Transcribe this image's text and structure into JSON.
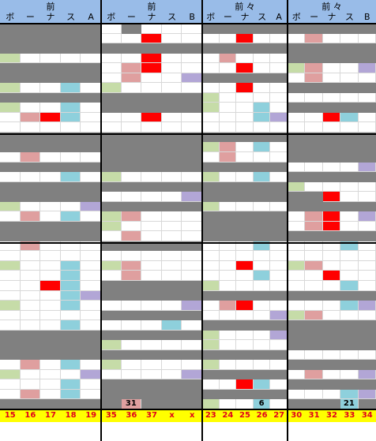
{
  "colors": {
    "gray": "#808080",
    "white": "#ffffff",
    "green": "#c6dca8",
    "pink": "#df9f9f",
    "red": "#ff0000",
    "cyan": "#8ed0dc",
    "purple": "#b2a6d6",
    "header_bg": "#99bce8",
    "footer_bg": "#ffff00",
    "footer_text": "#e0001b"
  },
  "panels": [
    {
      "title": "前",
      "cols": [
        "ボ",
        "ー",
        "ナ",
        "ス",
        "A"
      ],
      "footer": [
        "15",
        "16",
        "17",
        "18",
        "19"
      ]
    },
    {
      "title": "前",
      "cols": [
        "ボ",
        "ー",
        "ナ",
        "ス",
        "B"
      ],
      "footer": [
        "35",
        "36",
        "37",
        "x",
        "x"
      ]
    },
    {
      "title": "前 々",
      "cols": [
        "ボ",
        "ー",
        "ナ",
        "ス",
        "A"
      ],
      "footer": [
        "23",
        "24",
        "25",
        "26",
        "27"
      ]
    },
    {
      "title": "前 々",
      "cols": [
        "ボ",
        "ー",
        "ナ",
        "ス",
        "B"
      ],
      "footer": [
        "30",
        "31",
        "32",
        "33",
        "34"
      ]
    }
  ],
  "row_labels": {
    "p1_last": "31",
    "p2_last": "6",
    "p3_last": "21"
  },
  "grid": [
    "GGGGG|wGwww|GGGGG|GGGGG",
    "GGGGG|wwRww|wwRww|wpwww",
    "GGGGG|GGGGG|GGGGG|GGGGG",
    "gwwww|wwRww|wpwww|GGGGG",
    "GGGGG|wpRww|wwRww|gpwwv",
    "GGGGG|wpwwv|GGGGG|wpwww",
    "gwwcw|gwwww|wwRww|GGGGG",
    "GGGGG|GGGGG|gwwww|wwwww",
    "gwwcw|GGGGG|gwwcw|GGGGG",
    "wpRcw|wwRww|wwwcv|wwRcw",
    "wwwww|wwwww|wwwww|wwwww",
    "GGGGG|GGGGG|GGGGG|GGGGG",
    "GGGGG|GGGGG|gpwcw|GGGGG",
    "wpwww|GGGGG|wpwww|GGGGG",
    "GGGGG|GGGGG|GGGGG|wwwwv",
    "wwwcw|gwwww|gwwcw|GGGGG",
    "GGGGG|GGGGG|GGGGG|gwwww",
    "GGGGG|wwwwv|GGGGG|GGRww",
    "gwwwv|GGGGG|gwwww|GGGGG",
    "wpwcw|gpwww|GGGGG|wpRwv",
    "GGGGG|gwwww|GGGGG|wpRww",
    "GGGGG|wpwww|GGGGG|GGGGG",
    "wpwww|GGGGG|wwwcw|wwwcw",
    "wwwww|wwwww|wwwww|wwwww",
    "gwwcw|gpwww|wwRww|gpwww",
    "wwwcw|wpwww|wwwcw|wwRww",
    "wwRcw|GGGGG|gwwww|wwwcw",
    "wwwcv|GGGGG|GGGGG|GGGGG",
    "gwwcw|wwwwv|wpRww|wwwcv",
    "wwwww|GGGGG|wwwwv|gpwww",
    "wwwcw|wwwcw|GGGGG|GGGGG",
    "GGGGG|GGGGG|gwwwv|GGGGG",
    "GGGGG|gwwww|gwwww|GGGGG",
    "GGGGG|GGGGG|GGGGG|wwwww",
    "wpwcw|gwwww|gwwww|GGGGG",
    "gwwwv|wwwwv|GGGGG|wpwwv",
    "wwwcw|GGGGG|wwRcw|GGGGG",
    "wpwcw|GGGGG|GGGGG|wwwcv",
    "GGGGG|GGGGG|gwwww|GGGGG"
  ]
}
